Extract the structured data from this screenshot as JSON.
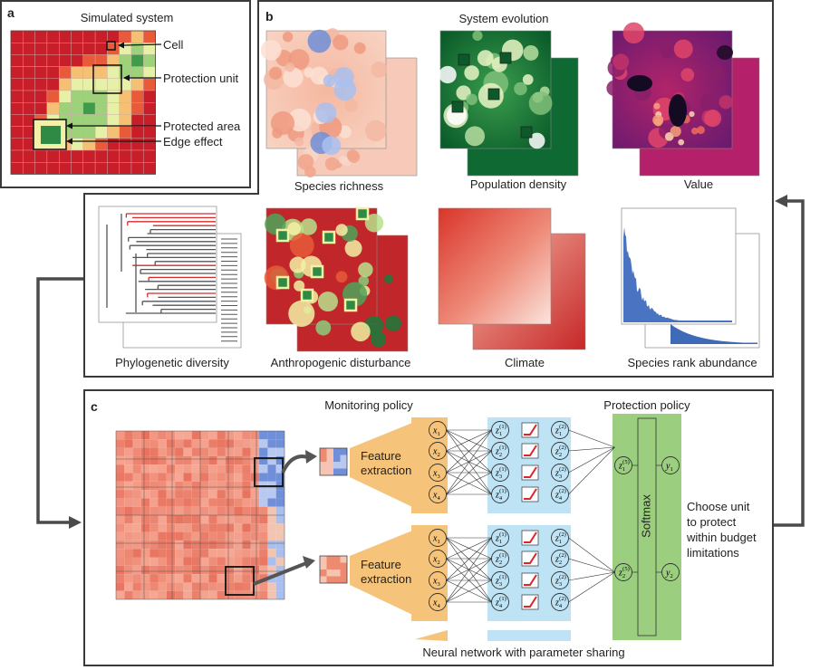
{
  "panel_a": {
    "label": "a",
    "title": "Simulated system",
    "callouts": [
      "Cell",
      "Protection unit",
      "Protected area",
      "Edge effect"
    ]
  },
  "panel_b": {
    "label": "b",
    "title": "System evolution",
    "maps": [
      {
        "caption": "Species richness"
      },
      {
        "caption": "Population density"
      },
      {
        "caption": "Value"
      },
      {
        "caption": "Phylogenetic diversity"
      },
      {
        "caption": "Anthropogenic disturbance"
      },
      {
        "caption": "Climate"
      },
      {
        "caption": "Species rank abundance"
      }
    ]
  },
  "panel_c": {
    "label": "c",
    "monitoring_title": "Monitoring policy",
    "protection_title": "Protection policy",
    "feature_label_line1": "Feature",
    "feature_label_line2": "extraction",
    "softmax_label": "Softmax",
    "nn_caption": "Neural network with parameter sharing",
    "decision_lines": [
      "Choose unit",
      "to protect",
      "within budget",
      "limitations"
    ],
    "input_nodes": [
      "x1",
      "x2",
      "x3",
      "x4"
    ],
    "hidden1_nodes": [
      "z1(1)",
      "z2(1)",
      "z3(1)",
      "z4(1)"
    ],
    "hidden2_nodes": [
      "z1(2)",
      "z2(2)",
      "z3(2)",
      "z4(2)"
    ],
    "agg_nodes": [
      "z1(5)",
      "z2(5)"
    ],
    "output_nodes": [
      "y1",
      "y2"
    ]
  },
  "colors": {
    "frame": "#3a3a3a",
    "feature_orange": "#f6c37a",
    "hidden_blue": "#bde3f5",
    "policy_green": "#9bcf7f",
    "activation_red": "#d8262c"
  }
}
